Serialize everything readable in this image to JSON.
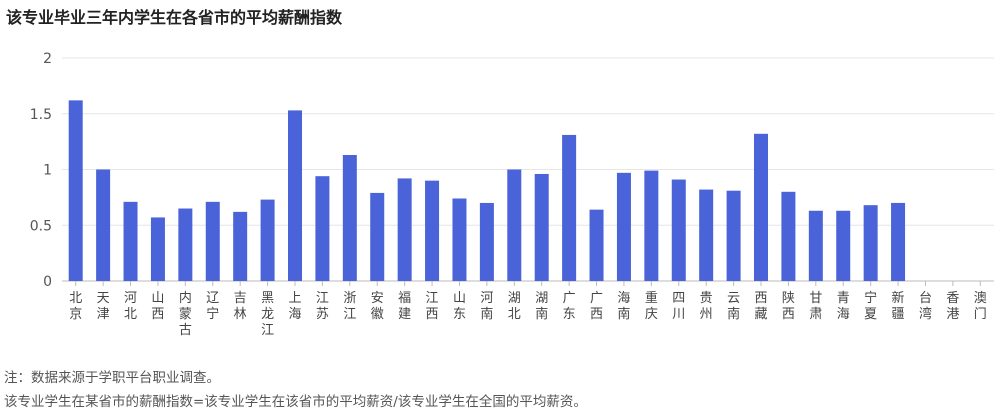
{
  "title": "该专业毕业三年内学生在各省市的平均薪酬指数",
  "notes": {
    "note1": "注：数据来源于学职平台职业调查。",
    "note2": "该专业学生在某省市的薪酬指数=该专业学生在该省市的平均薪资/该专业学生在全国的平均薪资。"
  },
  "chart_data": {
    "type": "bar",
    "title": "该专业毕业三年内学生在各省市的平均薪酬指数",
    "xlabel": "",
    "ylabel": "",
    "ylim": [
      0,
      2
    ],
    "yticks": [
      "0",
      "0.5",
      "1",
      "1.5",
      "2"
    ],
    "grid": true,
    "bar_color": "#4a63d9",
    "categories": [
      "北京",
      "天津",
      "河北",
      "山西",
      "内蒙古",
      "辽宁",
      "吉林",
      "黑龙江",
      "上海",
      "江苏",
      "浙江",
      "安徽",
      "福建",
      "江西",
      "山东",
      "河南",
      "湖北",
      "湖南",
      "广东",
      "广西",
      "海南",
      "重庆",
      "四川",
      "贵州",
      "云南",
      "西藏",
      "陕西",
      "甘肃",
      "青海",
      "宁夏",
      "新疆",
      "台湾",
      "香港",
      "澳门"
    ],
    "values": [
      1.62,
      1.0,
      0.71,
      0.57,
      0.65,
      0.71,
      0.62,
      0.73,
      1.53,
      0.94,
      1.13,
      0.79,
      0.92,
      0.9,
      0.74,
      0.7,
      1.0,
      0.96,
      1.31,
      0.64,
      0.97,
      0.99,
      0.91,
      0.82,
      0.81,
      1.32,
      0.8,
      0.63,
      0.63,
      0.68,
      0.7,
      0,
      0,
      0
    ]
  }
}
